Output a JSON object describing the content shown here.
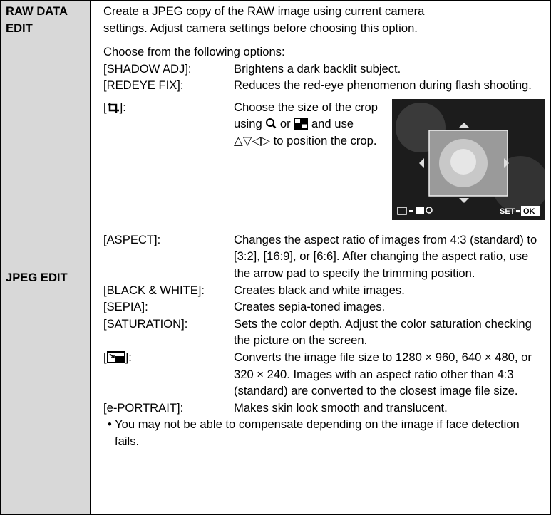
{
  "table": {
    "rows": [
      {
        "label": [
          "RAW DATA",
          "EDIT"
        ],
        "text": [
          "Create a JPEG copy of the RAW image using current camera",
          "settings. Adjust camera settings before choosing this option."
        ]
      },
      {
        "label": [
          "JPEG EDIT"
        ],
        "intro": "Choose from the following options:",
        "options": [
          {
            "name": "[SHADOW ADJ]:",
            "desc": "Brightens a dark backlit subject."
          },
          {
            "name": "[REDEYE FIX]:",
            "desc": "Reduces the red-eye phenomenon during flash shooting."
          },
          {
            "name_before": "[",
            "name_after": "]:",
            "desc_parts": [
              "Choose the size of the crop using",
              "or",
              "and use △▽◁▷ to position the crop."
            ],
            "screen_labels": [
              "SET",
              "OK"
            ]
          },
          {
            "name": "[ASPECT]:",
            "desc": "Changes the aspect ratio of images from 4:3 (standard) to [3:2], [16:9], or [6:6]. After changing the aspect ratio, use the arrow pad to specify the trimming position."
          },
          {
            "name": "[BLACK & WHITE]:",
            "desc": "Creates black and white images."
          },
          {
            "name": "[SEPIA]:",
            "desc": "Creates sepia-toned images."
          },
          {
            "name": "[SATURATION]:",
            "desc": "Sets the color depth. Adjust the color saturation checking the picture on the screen."
          },
          {
            "name_before": "[",
            "name_after": "]:",
            "desc": "Converts the image file size to 1280 × 960, 640 × 480, or 320 × 240. Images with an aspect ratio other than 4:3 (standard) are converted to the closest image file size."
          },
          {
            "name": "[e-PORTRAIT]:",
            "desc": "Makes skin look smooth and translucent."
          }
        ],
        "note": "• You may not be able to compensate depending on the image if face detection fails."
      }
    ]
  }
}
